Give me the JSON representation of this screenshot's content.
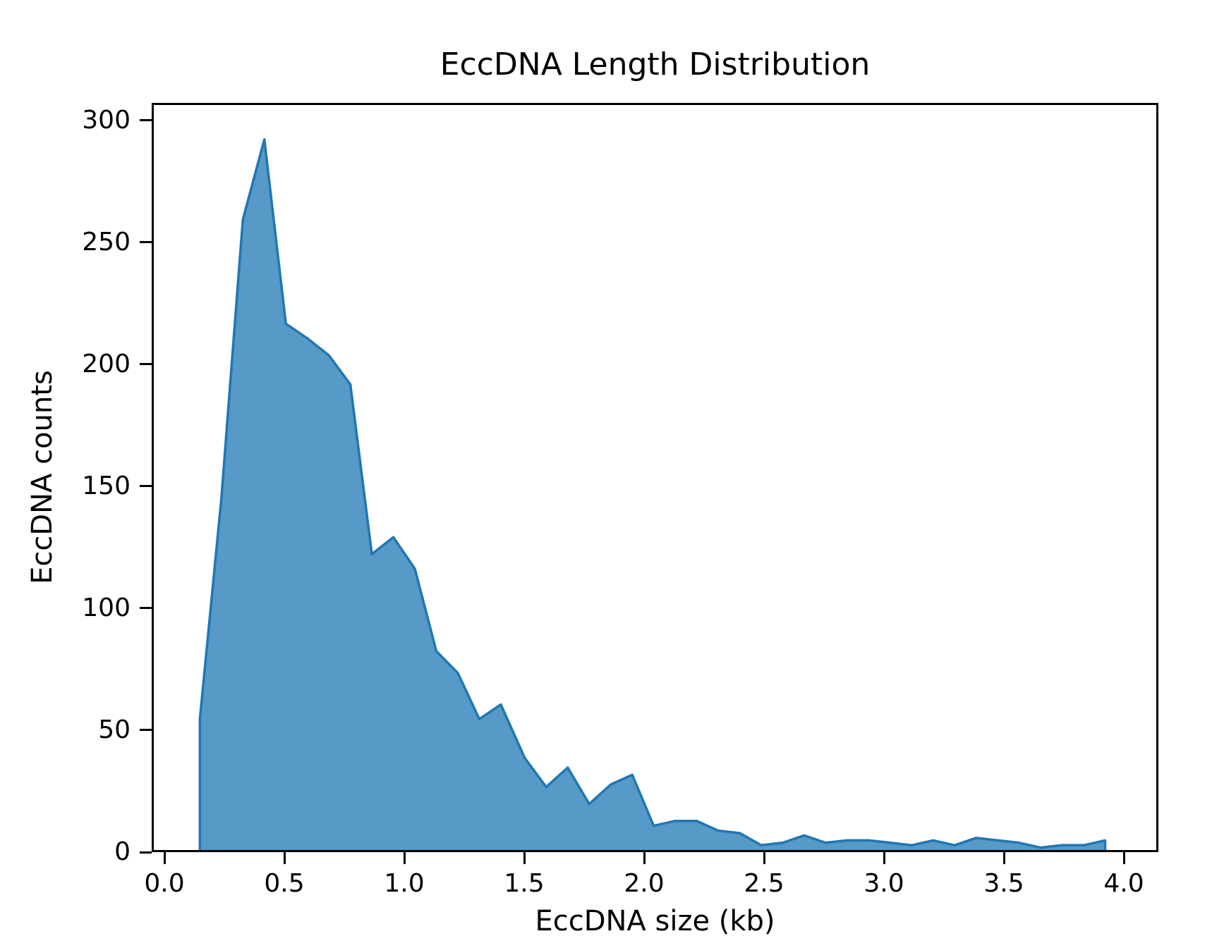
{
  "chart": {
    "title": "EccDNA Length Distribution",
    "xlabel": "EccDNA size (kb)",
    "ylabel": "EccDNA counts"
  },
  "chart_data": {
    "type": "area",
    "title": "EccDNA Length Distribution",
    "xlabel": "EccDNA size (kb)",
    "ylabel": "EccDNA counts",
    "series": [
      {
        "name": "EccDNA counts",
        "x": [
          0.14,
          0.23,
          0.32,
          0.41,
          0.5,
          0.59,
          0.68,
          0.77,
          0.86,
          0.95,
          1.04,
          1.13,
          1.22,
          1.31,
          1.4,
          1.5,
          1.59,
          1.68,
          1.77,
          1.86,
          1.95,
          2.04,
          2.13,
          2.22,
          2.31,
          2.4,
          2.49,
          2.58,
          2.67,
          2.76,
          2.85,
          2.94,
          3.03,
          3.12,
          3.21,
          3.3,
          3.39,
          3.48,
          3.57,
          3.66,
          3.75,
          3.84,
          3.93
        ],
        "y": [
          54,
          145,
          260,
          293,
          217,
          211,
          204,
          192,
          122,
          129,
          116,
          82,
          73,
          54,
          60,
          38,
          26,
          34,
          19,
          27,
          31,
          10,
          12,
          12,
          8,
          7,
          2,
          3,
          6,
          3,
          4,
          4,
          3,
          2,
          4,
          2,
          5,
          4,
          3,
          1,
          2,
          2,
          4
        ]
      }
    ],
    "peak": {
      "x": 0.41,
      "y": 293
    },
    "xlim": [
      -0.053,
      4.144
    ],
    "ylim": [
      0,
      307.2
    ],
    "x_ticks": [
      "0.0",
      "0.5",
      "1.0",
      "1.5",
      "2.0",
      "2.5",
      "3.0",
      "3.5",
      "4.0"
    ],
    "y_ticks": [
      "0",
      "50",
      "100",
      "150",
      "200",
      "250",
      "300"
    ],
    "grid": false,
    "legend": false,
    "baseline_fill_to_zero": true,
    "colors": {
      "line": "#1f77b4",
      "fill": "#5799c7",
      "axes": "#000000",
      "background": "#ffffff"
    }
  }
}
